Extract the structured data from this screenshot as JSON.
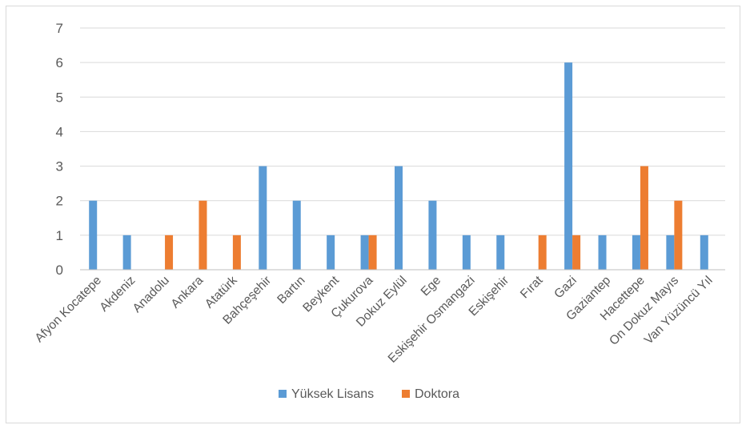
{
  "chart_data": {
    "type": "bar",
    "title": "",
    "xlabel": "",
    "ylabel": "",
    "ylim": [
      0,
      7
    ],
    "yticks": [
      0,
      1,
      2,
      3,
      4,
      5,
      6,
      7
    ],
    "grid": true,
    "legend_position": "bottom",
    "categories": [
      "Afyon Kocatepe",
      "Akdeniz",
      "Anadolu",
      "Ankara",
      "Atatürk",
      "Bahçeşehir",
      "Bartın",
      "Beykent",
      "Çukurova",
      "Dokuz Eylül",
      "Ege",
      "Eskişehir Osmangazi",
      "Eskişehir",
      "Fırat",
      "Gazi",
      "Gaziantep",
      "Hacettepe",
      "On Dokuz Mayıs",
      "Van Yüzüncü Yıl"
    ],
    "series": [
      {
        "name": "Yüksek Lisans",
        "color": "#5b9bd5",
        "values": [
          2,
          1,
          0,
          0,
          0,
          3,
          2,
          1,
          1,
          3,
          2,
          1,
          1,
          0,
          6,
          1,
          1,
          1,
          1
        ]
      },
      {
        "name": "Doktora",
        "color": "#ed7d31",
        "values": [
          0,
          0,
          1,
          2,
          1,
          0,
          0,
          0,
          1,
          0,
          0,
          0,
          0,
          1,
          1,
          0,
          3,
          2,
          0
        ]
      }
    ]
  }
}
